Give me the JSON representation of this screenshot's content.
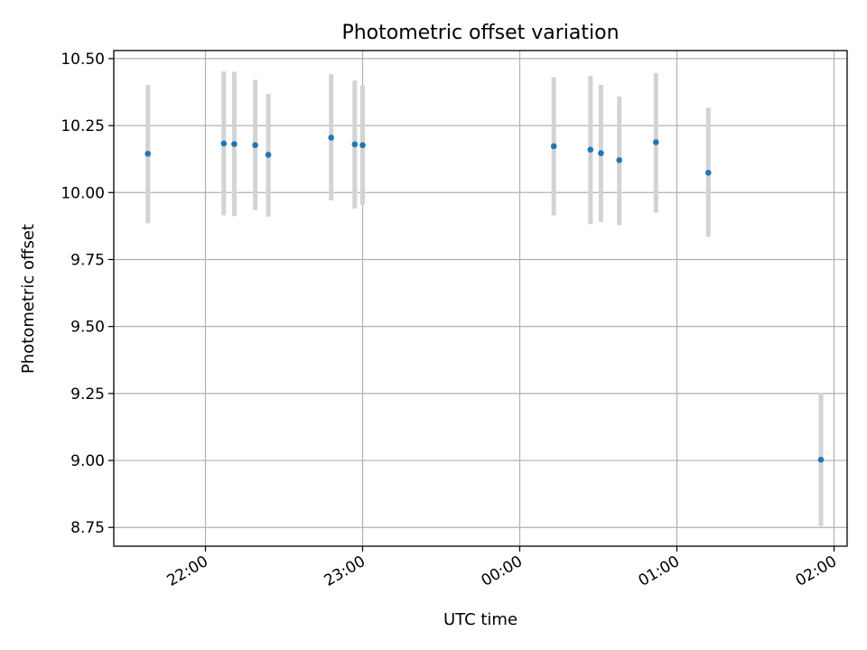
{
  "chart_data": {
    "type": "scatter",
    "title": "Photometric offset variation",
    "xlabel": "UTC time",
    "ylabel": "Photometric offset",
    "grid": true,
    "ylim": [
      8.68,
      10.53
    ],
    "xlim": [
      "21:25",
      "02:05"
    ],
    "x_ticks": [
      "22:00",
      "23:00",
      "00:00",
      "01:00",
      "02:00"
    ],
    "y_ticks": [
      "8.75",
      "9.00",
      "9.25",
      "9.50",
      "9.75",
      "10.00",
      "10.25",
      "10.50"
    ],
    "colors": {
      "point": "#1f77b4",
      "errorbar": "#d3d3d3",
      "grid": "#b0b0b0"
    },
    "series": [
      {
        "x": [
          "21:38",
          "22:07",
          "22:11",
          "22:19",
          "22:24",
          "22:48",
          "22:57",
          "23:00",
          "00:13",
          "00:27",
          "00:31",
          "00:38",
          "00:52",
          "01:12",
          "01:55"
        ],
        "y": [
          10.145,
          10.183,
          10.181,
          10.177,
          10.141,
          10.205,
          10.18,
          10.177,
          10.173,
          10.16,
          10.147,
          10.121,
          10.188,
          10.074,
          9.003
        ],
        "yerr_low": [
          9.885,
          9.915,
          9.912,
          9.935,
          9.91,
          9.97,
          9.94,
          9.955,
          9.915,
          9.882,
          9.89,
          9.878,
          9.925,
          9.835,
          8.755
        ],
        "yerr_high": [
          10.402,
          10.452,
          10.451,
          10.421,
          10.368,
          10.442,
          10.418,
          10.4,
          10.43,
          10.435,
          10.402,
          10.358,
          10.446,
          10.317,
          9.252
        ]
      }
    ]
  }
}
